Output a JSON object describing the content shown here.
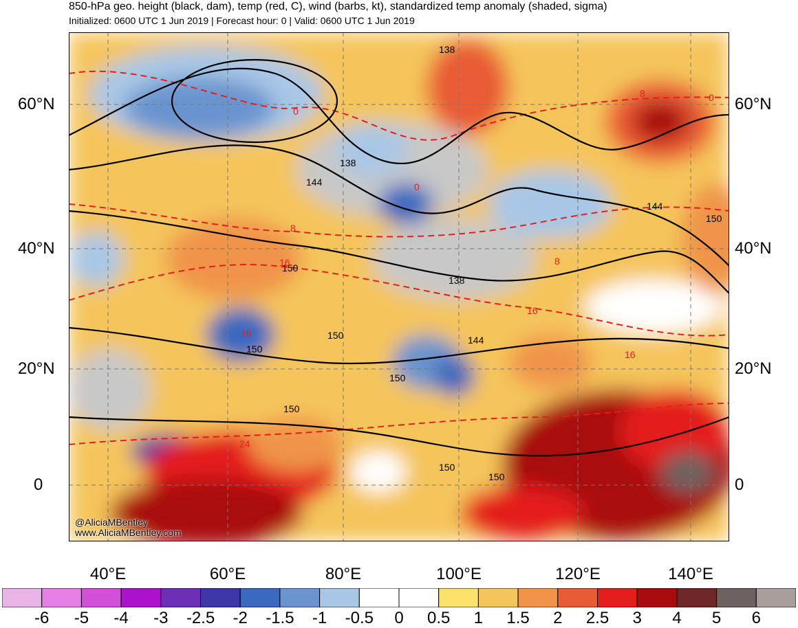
{
  "header": {
    "title": "850-hPa geo. height (black, dam), temp (red, C), wind (barbs, kt), standardized temp anomaly (shaded, sigma)",
    "subtitle": "Initialized: 0600 UTC 1 Jun 2019 | Forecast hour: 0 | Valid: 0600 UTC 1 Jun 2019"
  },
  "axes": {
    "lat_left": [
      "60°N",
      "40°N",
      "20°N",
      "0"
    ],
    "lat_right": [
      "60°N",
      "40°N",
      "20°N",
      "0"
    ],
    "lon": [
      "40°E",
      "60°E",
      "80°E",
      "100°E",
      "120°E",
      "140°E"
    ]
  },
  "map": {
    "height_labels": [
      "138",
      "138",
      "138",
      "144",
      "144",
      "144",
      "150",
      "150",
      "150",
      "150",
      "150",
      "150",
      "150",
      "150"
    ],
    "temp_labels": [
      "0",
      "0",
      "0",
      "8",
      "8",
      "8",
      "16",
      "16",
      "16",
      "16",
      "24"
    ],
    "credit_handle": "@AliciaMBentley",
    "credit_site": "www.AliciaMBentley.com"
  },
  "colorbar": {
    "colors": [
      "#e8b5e6",
      "#e680e6",
      "#d24fd8",
      "#ac12cc",
      "#6c2fb5",
      "#3c36a7",
      "#3b69c0",
      "#6b94cf",
      "#a8c7e6",
      "#ffffff",
      "#ffffff",
      "#fbe26a",
      "#f5c55b",
      "#f0944a",
      "#e95b35",
      "#e41e1d",
      "#a90b0e",
      "#6f2626",
      "#6e6260",
      "#a99e9a"
    ],
    "ticks": [
      "-6",
      "-5",
      "-4",
      "-3",
      "-2.5",
      "-2",
      "-1.5",
      "-1",
      "-0.5",
      "0",
      "0.5",
      "1",
      "1.5",
      "2",
      "2.5",
      "3",
      "4",
      "5",
      "6"
    ]
  },
  "colors": {
    "height_contour": "#000000",
    "temp_contour": "#e41e1d",
    "land_neutral": "#c8c8c8"
  }
}
